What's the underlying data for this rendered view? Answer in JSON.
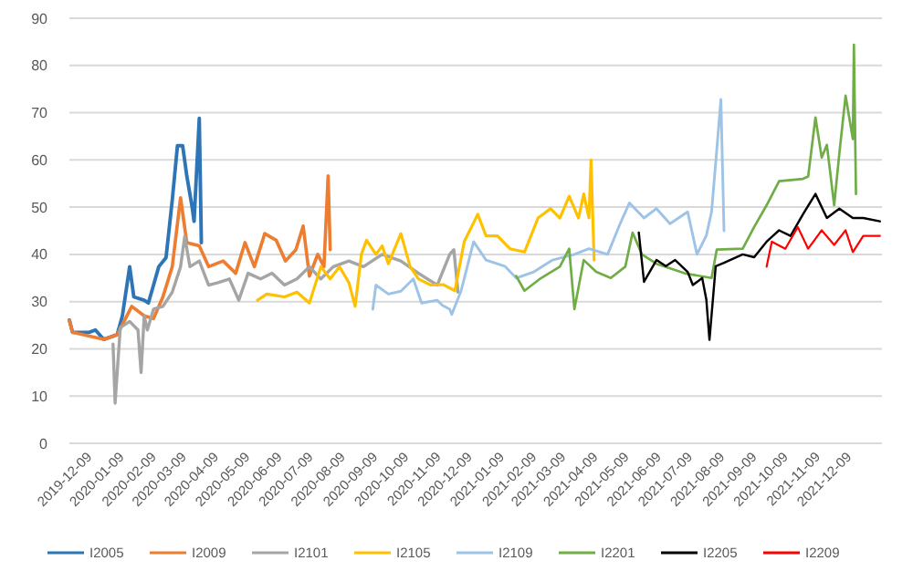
{
  "chart_data": {
    "type": "line",
    "ylim": [
      0,
      90
    ],
    "yticks": [
      0,
      10,
      20,
      30,
      40,
      50,
      60,
      70,
      80,
      90
    ],
    "xlim": [
      "2019-11-20",
      "2022-01-10"
    ],
    "xticks": [
      "2019-12-09",
      "2020-01-09",
      "2020-02-09",
      "2020-03-09",
      "2020-04-09",
      "2020-05-09",
      "2020-06-09",
      "2020-07-09",
      "2020-08-09",
      "2020-09-09",
      "2020-10-09",
      "2020-11-09",
      "2020-12-09",
      "2021-01-09",
      "2021-02-09",
      "2021-03-09",
      "2021-04-09",
      "2021-05-09",
      "2021-06-09",
      "2021-07-09",
      "2021-08-09",
      "2021-09-09",
      "2021-10-09",
      "2021-11-09",
      "2021-12-09"
    ],
    "grid": "y",
    "legend": "bottom",
    "marker": "none",
    "line_style": "solid",
    "series": [
      {
        "name": "I2005",
        "color": "#2e75b6",
        "x": [
          "2019-11-20",
          "2019-11-23",
          "2019-12-09",
          "2019-12-15",
          "2019-12-23",
          "2020-01-05",
          "2020-01-10",
          "2020-01-17",
          "2020-01-21",
          "2020-01-31",
          "2020-02-04",
          "2020-02-09",
          "2020-02-14",
          "2020-02-21",
          "2020-02-27",
          "2020-03-03",
          "2020-03-08",
          "2020-03-12",
          "2020-03-17",
          "2020-03-19",
          "2020-03-24",
          "2020-03-26"
        ],
        "values": [
          26.1,
          23.5,
          23.5,
          24,
          22,
          23,
          27,
          37.4,
          31,
          30.3,
          29.7,
          33.5,
          37.4,
          39.3,
          51.5,
          63,
          63,
          56.6,
          50.2,
          47,
          68.8,
          42.5
        ]
      },
      {
        "name": "I2009",
        "color": "#ed7d31",
        "x": [
          "2019-11-20",
          "2019-11-23",
          "2019-12-23",
          "2020-01-05",
          "2020-01-19",
          "2020-01-31",
          "2020-02-09",
          "2020-02-18",
          "2020-02-27",
          "2020-03-06",
          "2020-03-12",
          "2020-03-24",
          "2020-04-02",
          "2020-04-16",
          "2020-04-28",
          "2020-05-07",
          "2020-05-16",
          "2020-05-26",
          "2020-06-06",
          "2020-06-15",
          "2020-06-25",
          "2020-07-02",
          "2020-07-08",
          "2020-07-16",
          "2020-07-22",
          "2020-07-26",
          "2020-07-28"
        ],
        "values": [
          26,
          23.5,
          22,
          23,
          29,
          27,
          26.4,
          31,
          37.4,
          52,
          42.5,
          41.8,
          37.4,
          38.6,
          36,
          42.5,
          37.4,
          44.4,
          43,
          38.6,
          41,
          46,
          35.4,
          40,
          37.4,
          56.6,
          41
        ]
      },
      {
        "name": "I2101",
        "color": "#a5a5a5",
        "x": [
          "2020-01-01",
          "2020-01-03",
          "2020-01-08",
          "2020-01-17",
          "2020-01-25",
          "2020-01-28",
          "2020-01-31",
          "2020-02-03",
          "2020-02-09",
          "2020-02-18",
          "2020-02-27",
          "2020-03-06",
          "2020-03-10",
          "2020-03-15",
          "2020-03-24",
          "2020-04-02",
          "2020-04-11",
          "2020-04-22",
          "2020-05-01",
          "2020-05-10",
          "2020-05-22",
          "2020-06-02",
          "2020-06-14",
          "2020-06-26",
          "2020-07-08",
          "2020-07-19",
          "2020-07-31",
          "2020-08-15",
          "2020-08-29",
          "2020-09-16",
          "2020-10-04",
          "2020-10-21",
          "2020-11-08",
          "2020-11-20",
          "2020-11-24",
          "2020-11-28"
        ],
        "values": [
          21,
          8.5,
          24.5,
          25.8,
          24,
          15,
          27,
          24,
          28.4,
          29,
          32,
          37.4,
          43.8,
          37.4,
          38.6,
          33.5,
          34,
          34.8,
          30.3,
          36,
          34.8,
          36,
          33.5,
          34.8,
          37.4,
          34.8,
          37.4,
          38.6,
          37.4,
          40,
          38.6,
          36,
          33.5,
          40,
          41,
          32
        ]
      },
      {
        "name": "I2105",
        "color": "#ffc000",
        "x": [
          "2020-05-19",
          "2020-05-28",
          "2020-06-14",
          "2020-06-26",
          "2020-07-08",
          "2020-07-19",
          "2020-07-28",
          "2020-08-06",
          "2020-08-15",
          "2020-08-21",
          "2020-08-27",
          "2020-09-01",
          "2020-09-10",
          "2020-09-16",
          "2020-09-22",
          "2020-10-04",
          "2020-10-13",
          "2020-10-21",
          "2020-11-02",
          "2020-11-14",
          "2020-11-25",
          "2020-12-04",
          "2020-12-17",
          "2020-12-25",
          "2021-01-05",
          "2021-01-17",
          "2021-01-31",
          "2021-02-13",
          "2021-02-25",
          "2021-03-06",
          "2021-03-15",
          "2021-03-24",
          "2021-03-29",
          "2021-04-03",
          "2021-04-05",
          "2021-04-08"
        ],
        "values": [
          30.3,
          31.6,
          31,
          32,
          29.7,
          37.4,
          34.8,
          37.4,
          34,
          29,
          40,
          43,
          40,
          41.8,
          38,
          44.4,
          37.4,
          34.8,
          33.5,
          33.6,
          32.3,
          42.7,
          48.5,
          43.9,
          43.9,
          41.2,
          40.5,
          47.7,
          49.7,
          47.7,
          52.3,
          47.7,
          52.8,
          47.7,
          60,
          38.8
        ]
      },
      {
        "name": "I2109",
        "color": "#9dc3e6",
        "x": [
          "2020-09-07",
          "2020-09-10",
          "2020-09-22",
          "2020-10-04",
          "2020-10-16",
          "2020-10-24",
          "2020-11-08",
          "2020-11-13",
          "2020-11-20",
          "2020-11-22",
          "2020-12-01",
          "2020-12-13",
          "2020-12-25",
          "2021-01-12",
          "2021-01-23",
          "2021-02-09",
          "2021-02-27",
          "2021-03-20",
          "2021-04-03",
          "2021-04-21",
          "2021-05-03",
          "2021-05-12",
          "2021-05-26",
          "2021-06-07",
          "2021-06-20",
          "2021-07-07",
          "2021-07-16",
          "2021-07-25",
          "2021-07-30",
          "2021-08-04",
          "2021-08-08",
          "2021-08-11"
        ],
        "values": [
          28.4,
          33.5,
          31.6,
          32.2,
          34.8,
          29.7,
          30.3,
          29.2,
          28.4,
          27.3,
          32.3,
          42.7,
          38.8,
          37.5,
          35,
          36.3,
          38.8,
          40,
          41.2,
          40,
          46.5,
          50.9,
          47.7,
          49.7,
          46.5,
          49,
          40,
          44,
          49,
          62,
          72.8,
          45
        ]
      },
      {
        "name": "I2201",
        "color": "#70ad47",
        "x": [
          "2021-01-23",
          "2021-01-31",
          "2021-02-16",
          "2021-03-06",
          "2021-03-15",
          "2021-03-20",
          "2021-03-29",
          "2021-04-10",
          "2021-04-24",
          "2021-05-08",
          "2021-05-15",
          "2021-05-24",
          "2021-06-07",
          "2021-07-04",
          "2021-07-30",
          "2021-08-04",
          "2021-08-29",
          "2021-09-09",
          "2021-09-21",
          "2021-10-03",
          "2021-10-26",
          "2021-10-31",
          "2021-11-07",
          "2021-11-13",
          "2021-11-18",
          "2021-11-25",
          "2021-11-30",
          "2021-12-06",
          "2021-12-13",
          "2021-12-14",
          "2021-12-16"
        ],
        "values": [
          35.4,
          32.3,
          35,
          37.4,
          41.2,
          28.4,
          38.8,
          36.3,
          35,
          37.4,
          44.6,
          40,
          38,
          36,
          35,
          41,
          41.2,
          45.8,
          50.4,
          55.5,
          56,
          56.5,
          69,
          60.5,
          63.2,
          50.4,
          61.4,
          73.6,
          64.4,
          84.4,
          52.8
        ]
      },
      {
        "name": "I2205",
        "color": "#000000",
        "x": [
          "2021-05-21",
          "2021-05-26",
          "2021-06-07",
          "2021-06-16",
          "2021-06-25",
          "2021-07-07",
          "2021-07-12",
          "2021-07-21",
          "2021-07-25",
          "2021-07-28",
          "2021-08-03",
          "2021-08-11",
          "2021-08-29",
          "2021-09-09",
          "2021-09-21",
          "2021-10-03",
          "2021-10-14",
          "2021-10-26",
          "2021-11-07",
          "2021-11-18",
          "2021-11-30",
          "2021-12-13",
          "2021-12-23",
          "2022-01-08"
        ],
        "values": [
          44.6,
          34.2,
          38.8,
          37.5,
          38.8,
          36.3,
          33.5,
          35,
          30.4,
          21.9,
          37.5,
          38.2,
          40,
          39.4,
          42.7,
          45.1,
          43.9,
          48.5,
          52.8,
          47.7,
          49.7,
          47.7,
          47.7,
          47
        ]
      },
      {
        "name": "I2209",
        "color": "#ff0000",
        "x": [
          "2021-09-21",
          "2021-09-26",
          "2021-10-09",
          "2021-10-21",
          "2021-10-31",
          "2021-11-13",
          "2021-11-25",
          "2021-12-06",
          "2021-12-13",
          "2021-12-23",
          "2022-01-08"
        ],
        "values": [
          37.4,
          42.7,
          41.2,
          45.8,
          41.2,
          45.1,
          42,
          45.1,
          40.5,
          43.9,
          43.9
        ]
      }
    ]
  }
}
